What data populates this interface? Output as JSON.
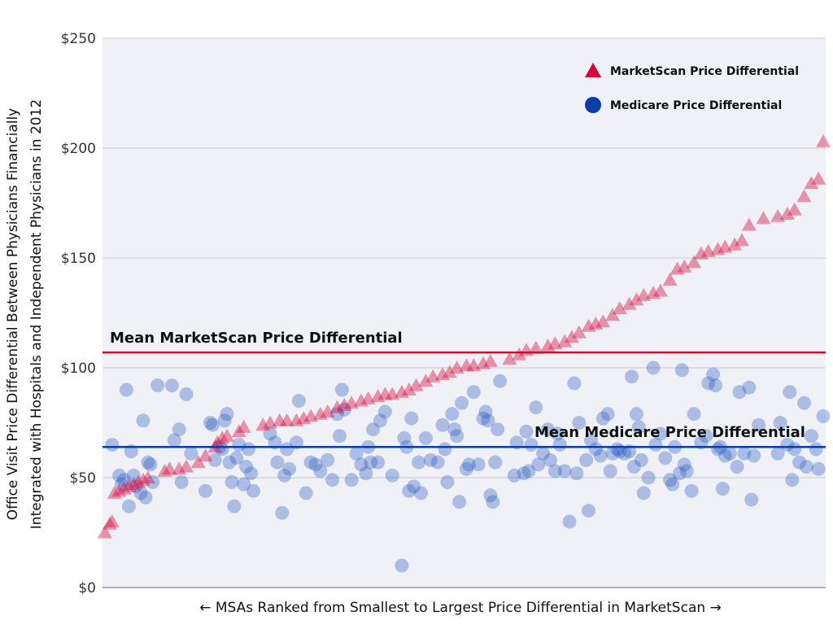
{
  "chart_data": {
    "type": "scatter",
    "title": "",
    "ylabel_lines": [
      "Office Visit Price Differential Between Physicians Financially",
      "Integrated with Hospitals and Independent Physicians in 2012"
    ],
    "xlabel": "←  MSAs Ranked from Smallest to Largest Price Differential in MarketScan  →",
    "ylim": [
      0,
      250
    ],
    "xlim": [
      0,
      302
    ],
    "yticks": [
      0,
      50,
      100,
      150,
      200,
      250
    ],
    "ytick_labels": [
      "$0",
      "$50",
      "$100",
      "$150",
      "$200",
      "$250"
    ],
    "grid": true,
    "legend_position": "top-right",
    "colors": {
      "marketscan": "#d9003a",
      "medicare": "#0a3ea8",
      "background": "#f0f1f6"
    },
    "series": [
      {
        "name": "MarketScan Price Differential",
        "marker": "triangle",
        "points": [
          [
            1,
            25
          ],
          [
            3,
            29
          ],
          [
            4,
            30
          ],
          [
            5,
            43
          ],
          [
            7,
            44
          ],
          [
            9,
            45
          ],
          [
            11,
            46
          ],
          [
            13,
            47
          ],
          [
            15,
            48
          ],
          [
            17,
            49
          ],
          [
            19,
            50
          ],
          [
            26,
            53
          ],
          [
            28,
            54
          ],
          [
            32,
            54
          ],
          [
            35,
            55
          ],
          [
            40,
            57
          ],
          [
            43,
            60
          ],
          [
            47,
            64
          ],
          [
            48,
            66
          ],
          [
            50,
            68
          ],
          [
            52,
            69
          ],
          [
            57,
            71
          ],
          [
            59,
            73
          ],
          [
            67,
            74
          ],
          [
            70,
            75
          ],
          [
            74,
            76
          ],
          [
            77,
            76
          ],
          [
            81,
            76
          ],
          [
            84,
            77
          ],
          [
            87,
            78
          ],
          [
            91,
            79
          ],
          [
            94,
            80
          ],
          [
            98,
            82
          ],
          [
            101,
            83
          ],
          [
            104,
            84
          ],
          [
            108,
            85
          ],
          [
            111,
            86
          ],
          [
            115,
            87
          ],
          [
            118,
            88
          ],
          [
            121,
            88
          ],
          [
            125,
            89
          ],
          [
            128,
            90
          ],
          [
            131,
            92
          ],
          [
            135,
            94
          ],
          [
            138,
            96
          ],
          [
            142,
            97
          ],
          [
            145,
            98
          ],
          [
            148,
            100
          ],
          [
            152,
            101
          ],
          [
            155,
            101
          ],
          [
            159,
            102
          ],
          [
            162,
            103
          ],
          [
            170,
            104
          ],
          [
            174,
            106
          ],
          [
            177,
            108
          ],
          [
            181,
            109
          ],
          [
            186,
            110
          ],
          [
            189,
            111
          ],
          [
            193,
            112
          ],
          [
            196,
            114
          ],
          [
            199,
            116
          ],
          [
            203,
            119
          ],
          [
            206,
            120
          ],
          [
            209,
            121
          ],
          [
            213,
            124
          ],
          [
            216,
            127
          ],
          [
            220,
            129
          ],
          [
            223,
            131
          ],
          [
            226,
            133
          ],
          [
            230,
            134
          ],
          [
            233,
            135
          ],
          [
            237,
            140
          ],
          [
            240,
            145
          ],
          [
            243,
            146
          ],
          [
            247,
            148
          ],
          [
            250,
            152
          ],
          [
            253,
            153
          ],
          [
            257,
            154
          ],
          [
            260,
            155
          ],
          [
            264,
            156
          ],
          [
            267,
            158
          ],
          [
            270,
            165
          ],
          [
            276,
            168
          ],
          [
            282,
            169
          ],
          [
            286,
            170
          ],
          [
            289,
            172
          ],
          [
            293,
            178
          ],
          [
            296,
            184
          ],
          [
            299,
            186
          ],
          [
            301,
            203
          ]
        ]
      },
      {
        "name": "Medicare Price Differential",
        "marker": "circle",
        "points": [
          [
            4,
            65
          ],
          [
            7,
            51
          ],
          [
            8,
            47
          ],
          [
            9,
            49
          ],
          [
            10,
            90
          ],
          [
            11,
            37
          ],
          [
            12,
            62
          ],
          [
            13,
            51
          ],
          [
            14,
            46
          ],
          [
            16,
            43
          ],
          [
            17,
            76
          ],
          [
            18,
            41
          ],
          [
            19,
            57
          ],
          [
            20,
            56
          ],
          [
            21,
            48
          ],
          [
            23,
            92
          ],
          [
            29,
            92
          ],
          [
            30,
            67
          ],
          [
            32,
            72
          ],
          [
            33,
            48
          ],
          [
            35,
            88
          ],
          [
            37,
            61
          ],
          [
            43,
            44
          ],
          [
            45,
            75
          ],
          [
            46,
            74
          ],
          [
            47,
            58
          ],
          [
            49,
            64
          ],
          [
            50,
            63
          ],
          [
            51,
            76
          ],
          [
            52,
            79
          ],
          [
            53,
            57
          ],
          [
            54,
            48
          ],
          [
            55,
            37
          ],
          [
            56,
            59
          ],
          [
            57,
            65
          ],
          [
            59,
            47
          ],
          [
            60,
            55
          ],
          [
            61,
            63
          ],
          [
            62,
            52
          ],
          [
            63,
            44
          ],
          [
            70,
            70
          ],
          [
            72,
            66
          ],
          [
            73,
            57
          ],
          [
            75,
            34
          ],
          [
            76,
            51
          ],
          [
            77,
            63
          ],
          [
            78,
            54
          ],
          [
            81,
            66
          ],
          [
            82,
            85
          ],
          [
            85,
            43
          ],
          [
            87,
            57
          ],
          [
            89,
            56
          ],
          [
            91,
            53
          ],
          [
            94,
            58
          ],
          [
            96,
            49
          ],
          [
            98,
            79
          ],
          [
            99,
            69
          ],
          [
            100,
            90
          ],
          [
            101,
            81
          ],
          [
            104,
            49
          ],
          [
            106,
            61
          ],
          [
            108,
            56
          ],
          [
            110,
            52
          ],
          [
            111,
            64
          ],
          [
            112,
            57
          ],
          [
            113,
            72
          ],
          [
            115,
            57
          ],
          [
            116,
            76
          ],
          [
            118,
            80
          ],
          [
            121,
            51
          ],
          [
            125,
            10
          ],
          [
            126,
            68
          ],
          [
            127,
            64
          ],
          [
            128,
            44
          ],
          [
            129,
            77
          ],
          [
            130,
            46
          ],
          [
            132,
            57
          ],
          [
            133,
            43
          ],
          [
            135,
            68
          ],
          [
            137,
            58
          ],
          [
            140,
            57
          ],
          [
            142,
            74
          ],
          [
            143,
            63
          ],
          [
            144,
            48
          ],
          [
            146,
            79
          ],
          [
            147,
            72
          ],
          [
            148,
            69
          ],
          [
            149,
            39
          ],
          [
            150,
            84
          ],
          [
            152,
            54
          ],
          [
            153,
            56
          ],
          [
            155,
            89
          ],
          [
            157,
            56
          ],
          [
            159,
            77
          ],
          [
            160,
            80
          ],
          [
            161,
            76
          ],
          [
            162,
            42
          ],
          [
            163,
            39
          ],
          [
            164,
            57
          ],
          [
            165,
            72
          ],
          [
            166,
            94
          ],
          [
            172,
            51
          ],
          [
            173,
            66
          ],
          [
            176,
            52
          ],
          [
            177,
            71
          ],
          [
            178,
            53
          ],
          [
            179,
            65
          ],
          [
            181,
            82
          ],
          [
            182,
            56
          ],
          [
            184,
            61
          ],
          [
            186,
            72
          ],
          [
            187,
            58
          ],
          [
            189,
            53
          ],
          [
            190,
            70
          ],
          [
            191,
            65
          ],
          [
            193,
            53
          ],
          [
            195,
            30
          ],
          [
            197,
            93
          ],
          [
            198,
            52
          ],
          [
            199,
            75
          ],
          [
            202,
            58
          ],
          [
            203,
            35
          ],
          [
            204,
            67
          ],
          [
            206,
            63
          ],
          [
            208,
            60
          ],
          [
            209,
            77
          ],
          [
            211,
            79
          ],
          [
            212,
            53
          ],
          [
            213,
            61
          ],
          [
            215,
            63
          ],
          [
            216,
            62
          ],
          [
            218,
            61
          ],
          [
            220,
            62
          ],
          [
            221,
            96
          ],
          [
            222,
            55
          ],
          [
            223,
            79
          ],
          [
            224,
            73
          ],
          [
            225,
            58
          ],
          [
            226,
            43
          ],
          [
            228,
            50
          ],
          [
            230,
            100
          ],
          [
            231,
            65
          ],
          [
            233,
            70
          ],
          [
            235,
            59
          ],
          [
            237,
            49
          ],
          [
            238,
            47
          ],
          [
            239,
            64
          ],
          [
            241,
            52
          ],
          [
            242,
            99
          ],
          [
            243,
            56
          ],
          [
            244,
            53
          ],
          [
            246,
            44
          ],
          [
            247,
            79
          ],
          [
            250,
            66
          ],
          [
            252,
            69
          ],
          [
            253,
            93
          ],
          [
            255,
            97
          ],
          [
            256,
            92
          ],
          [
            257,
            63
          ],
          [
            258,
            64
          ],
          [
            259,
            45
          ],
          [
            260,
            60
          ],
          [
            262,
            61
          ],
          [
            265,
            55
          ],
          [
            266,
            89
          ],
          [
            268,
            61
          ],
          [
            270,
            91
          ],
          [
            271,
            40
          ],
          [
            272,
            60
          ],
          [
            274,
            74
          ],
          [
            282,
            61
          ],
          [
            283,
            75
          ],
          [
            286,
            65
          ],
          [
            287,
            89
          ],
          [
            288,
            49
          ],
          [
            289,
            63
          ],
          [
            291,
            57
          ],
          [
            293,
            84
          ],
          [
            294,
            55
          ],
          [
            296,
            69
          ],
          [
            298,
            63
          ],
          [
            299,
            54
          ],
          [
            301,
            78
          ]
        ]
      }
    ],
    "mean_lines": [
      {
        "label": "Mean MarketScan Price Differential",
        "value": 107
      },
      {
        "label": "Mean Medicare Price Differential",
        "value": 64
      }
    ]
  }
}
